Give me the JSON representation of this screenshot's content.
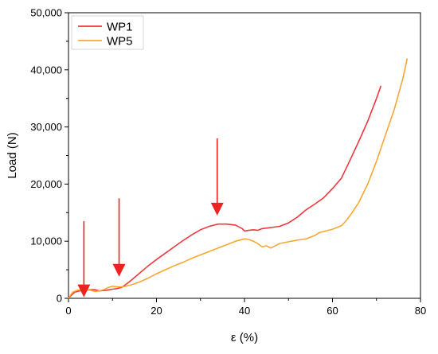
{
  "chart_data": {
    "type": "line",
    "title": "",
    "xlabel": "ε (%)",
    "ylabel": "Load (N)",
    "xlim": [
      0,
      80
    ],
    "ylim": [
      0,
      50000
    ],
    "xticks": [
      0,
      20,
      40,
      60,
      80
    ],
    "xtick_labels": [
      "0",
      "20",
      "40",
      "60",
      "80"
    ],
    "yticks": [
      0,
      10000,
      20000,
      30000,
      40000,
      50000
    ],
    "ytick_labels": [
      "0",
      "10,000",
      "20,000",
      "30,000",
      "40,000",
      "50,000"
    ],
    "grid": false,
    "legend_position": "top-left",
    "series": [
      {
        "name": "WP1",
        "color": "#f0373c",
        "points": [
          [
            0,
            0
          ],
          [
            0.5,
            400
          ],
          [
            1,
            800
          ],
          [
            1.5,
            1100
          ],
          [
            2.5,
            1300
          ],
          [
            3.5,
            1400
          ],
          [
            5,
            1500
          ],
          [
            6,
            1500
          ],
          [
            7,
            1300
          ],
          [
            8.5,
            1400
          ],
          [
            10,
            1600
          ],
          [
            11,
            1700
          ],
          [
            12,
            1900
          ],
          [
            13,
            2400
          ],
          [
            14,
            3000
          ],
          [
            16,
            4300
          ],
          [
            18,
            5600
          ],
          [
            20,
            6800
          ],
          [
            22,
            7900
          ],
          [
            24,
            9000
          ],
          [
            26,
            10100
          ],
          [
            28,
            11100
          ],
          [
            30,
            12000
          ],
          [
            32,
            12600
          ],
          [
            34,
            13000
          ],
          [
            36,
            13000
          ],
          [
            38,
            12800
          ],
          [
            39.5,
            12200
          ],
          [
            40,
            11800
          ],
          [
            41,
            11900
          ],
          [
            42,
            12000
          ],
          [
            43,
            11900
          ],
          [
            44,
            12200
          ],
          [
            46,
            12400
          ],
          [
            48,
            12600
          ],
          [
            50,
            13200
          ],
          [
            52,
            14200
          ],
          [
            54,
            15500
          ],
          [
            56,
            16500
          ],
          [
            58,
            17600
          ],
          [
            60,
            19200
          ],
          [
            62,
            21000
          ],
          [
            64,
            24200
          ],
          [
            66,
            27500
          ],
          [
            68,
            31000
          ],
          [
            70,
            35000
          ],
          [
            71,
            37200
          ]
        ]
      },
      {
        "name": "WP5",
        "color": "#f8a832",
        "points": [
          [
            0,
            0
          ],
          [
            0.5,
            600
          ],
          [
            1,
            1100
          ],
          [
            2,
            1400
          ],
          [
            3,
            1500
          ],
          [
            4,
            1600
          ],
          [
            5,
            1400
          ],
          [
            6,
            1200
          ],
          [
            7,
            1300
          ],
          [
            8,
            1500
          ],
          [
            9,
            1900
          ],
          [
            10,
            2100
          ],
          [
            11,
            2000
          ],
          [
            12,
            2000
          ],
          [
            13,
            2100
          ],
          [
            14,
            2300
          ],
          [
            16,
            2800
          ],
          [
            18,
            3500
          ],
          [
            20,
            4300
          ],
          [
            22,
            5000
          ],
          [
            24,
            5700
          ],
          [
            26,
            6300
          ],
          [
            28,
            7000
          ],
          [
            30,
            7600
          ],
          [
            32,
            8200
          ],
          [
            34,
            8800
          ],
          [
            36,
            9400
          ],
          [
            38,
            10000
          ],
          [
            40,
            10400
          ],
          [
            41,
            10300
          ],
          [
            42,
            10000
          ],
          [
            43,
            9600
          ],
          [
            44,
            9000
          ],
          [
            45,
            9200
          ],
          [
            46,
            8800
          ],
          [
            47,
            9200
          ],
          [
            48,
            9600
          ],
          [
            50,
            9900
          ],
          [
            52,
            10200
          ],
          [
            54,
            10400
          ],
          [
            56,
            11000
          ],
          [
            57,
            11500
          ],
          [
            58,
            11700
          ],
          [
            60,
            12100
          ],
          [
            62,
            12700
          ],
          [
            63,
            13500
          ],
          [
            64,
            14500
          ],
          [
            66,
            16800
          ],
          [
            68,
            20000
          ],
          [
            70,
            24000
          ],
          [
            72,
            28500
          ],
          [
            74,
            33000
          ],
          [
            76,
            38500
          ],
          [
            77,
            42000
          ]
        ]
      }
    ],
    "annotations": [
      {
        "type": "arrow",
        "color": "#ee2222",
        "x": 3.5,
        "y_start": 13500,
        "y_end": 200
      },
      {
        "type": "arrow",
        "color": "#ee2222",
        "x": 11.5,
        "y_start": 17500,
        "y_end": 3800
      },
      {
        "type": "arrow",
        "color": "#ee2222",
        "x": 33.8,
        "y_start": 28000,
        "y_end": 14500
      }
    ]
  }
}
